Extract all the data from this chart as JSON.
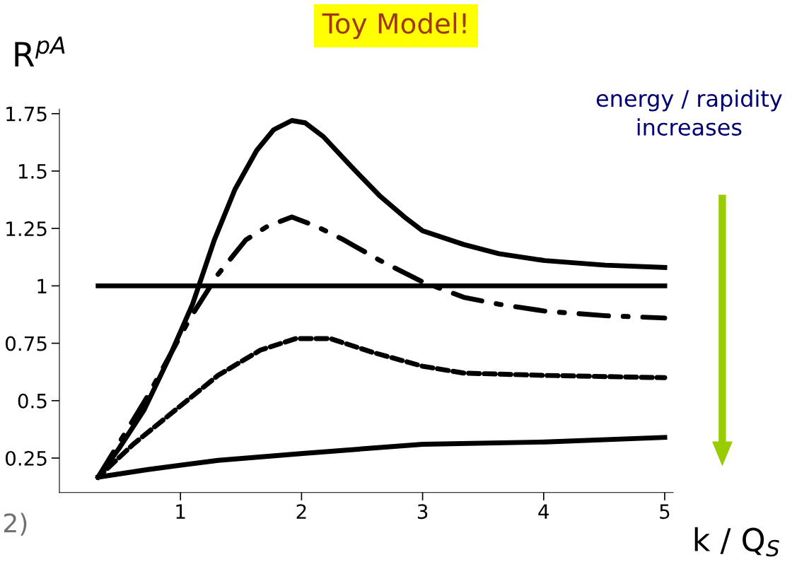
{
  "chart_data": {
    "type": "line",
    "title": "Toy Model!",
    "xlabel": "k / Q$_{S}$",
    "ylabel": "R$^{pA}$",
    "annotations": [
      "energy / rapidity\nincreases",
      "2)"
    ],
    "xlim": [
      0,
      5.07
    ],
    "ylim": [
      0.1,
      1.77
    ],
    "xticks": [
      1,
      2,
      3,
      4,
      5
    ],
    "yticks": [
      0.25,
      0.5,
      0.75,
      1,
      1.25,
      1.5,
      1.75
    ],
    "grid": false,
    "legend": false,
    "marker": "none",
    "series": [
      {
        "color": "#000000",
        "line_style": "solid",
        "x": [
          0.32,
          0.49,
          0.7,
          0.9,
          1.1,
          1.28,
          1.45,
          1.63,
          1.77,
          1.92,
          2.03,
          2.18,
          2.41,
          2.65,
          2.85,
          3.0,
          3.34,
          3.63,
          4.01,
          4.51,
          5.0
        ],
        "values": [
          0.167,
          0.29,
          0.46,
          0.68,
          0.92,
          1.2,
          1.42,
          1.59,
          1.68,
          1.72,
          1.71,
          1.65,
          1.52,
          1.39,
          1.3,
          1.24,
          1.18,
          1.14,
          1.11,
          1.09,
          1.08
        ]
      },
      {
        "color": "#000000",
        "line_style": "dashdot",
        "x": [
          0.32,
          0.73,
          1.08,
          1.31,
          1.54,
          1.72,
          1.92,
          2.12,
          2.35,
          2.65,
          2.99,
          3.34,
          3.63,
          4.01,
          4.51,
          5.0
        ],
        "values": [
          0.167,
          0.52,
          0.86,
          1.05,
          1.2,
          1.26,
          1.3,
          1.26,
          1.2,
          1.11,
          1.02,
          0.95,
          0.92,
          0.89,
          0.87,
          0.86
        ]
      },
      {
        "color": "#000000",
        "line_style": "dashed",
        "x": [
          0.32,
          0.61,
          0.96,
          1.31,
          1.66,
          1.95,
          2.24,
          2.59,
          3.0,
          3.34,
          4.01,
          5.0
        ],
        "values": [
          0.167,
          0.31,
          0.46,
          0.61,
          0.72,
          0.77,
          0.77,
          0.71,
          0.65,
          0.62,
          0.61,
          0.6
        ]
      },
      {
        "color": "#000000",
        "line_style": "solid",
        "x": [
          0.32,
          0.73,
          1.31,
          2.01,
          3.0,
          4.01,
          5.0
        ],
        "values": [
          0.167,
          0.2,
          0.24,
          0.27,
          0.31,
          0.32,
          0.34
        ]
      },
      {
        "color": "#000000",
        "line_style": "solid",
        "x": [
          0.32,
          5.0
        ],
        "values": [
          1,
          1
        ]
      }
    ]
  }
}
